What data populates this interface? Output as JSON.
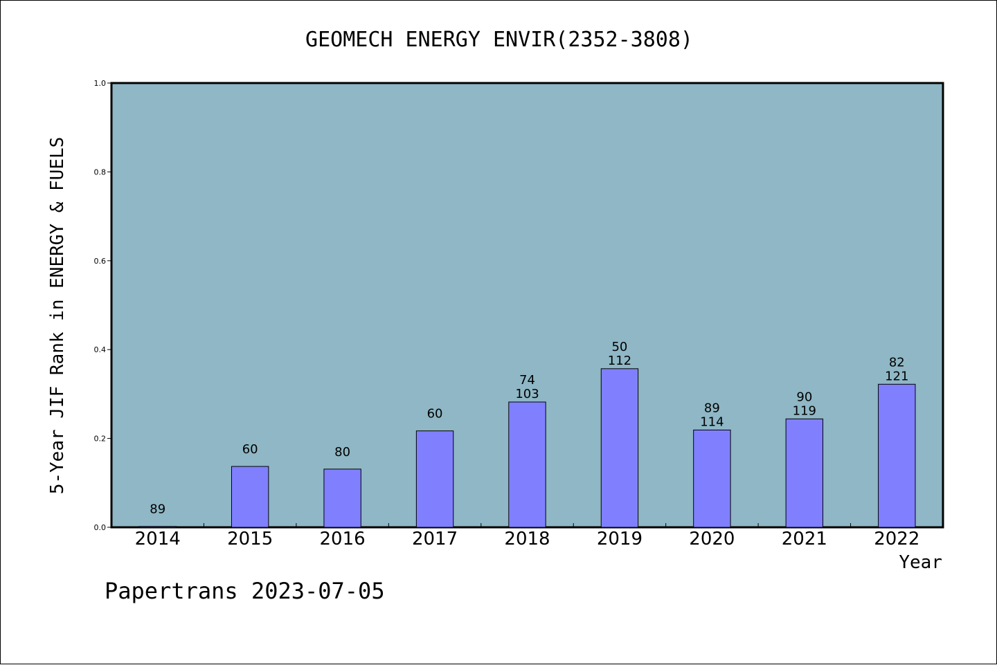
{
  "chart_data": {
    "type": "bar",
    "title": "GEOMECH ENERGY ENVIR(2352-3808)",
    "xlabel": "Year",
    "ylabel": "5-Year JIF Rank in ENERGY & FUELS",
    "ylim": [
      0,
      1.0
    ],
    "yticks": [
      "0.0",
      "0.2",
      "0.4",
      "0.6",
      "0.8",
      "1.0"
    ],
    "categories": [
      "2014",
      "2015",
      "2016",
      "2017",
      "2018",
      "2019",
      "2020",
      "2021",
      "2022"
    ],
    "values": [
      0.002,
      0.137,
      0.131,
      0.217,
      0.282,
      0.357,
      0.219,
      0.244,
      0.322
    ],
    "rank_labels": [
      "89",
      "60",
      "80",
      "60",
      "74",
      "50",
      "89",
      "90",
      "82"
    ],
    "total_labels": [
      "",
      "",
      "",
      "",
      "103",
      "112",
      "114",
      "119",
      "121"
    ],
    "grid": false,
    "colors": {
      "plot_bg": "#8fb7c5",
      "bar": "#8080ff"
    }
  },
  "footer": "Papertrans 2023-07-05"
}
